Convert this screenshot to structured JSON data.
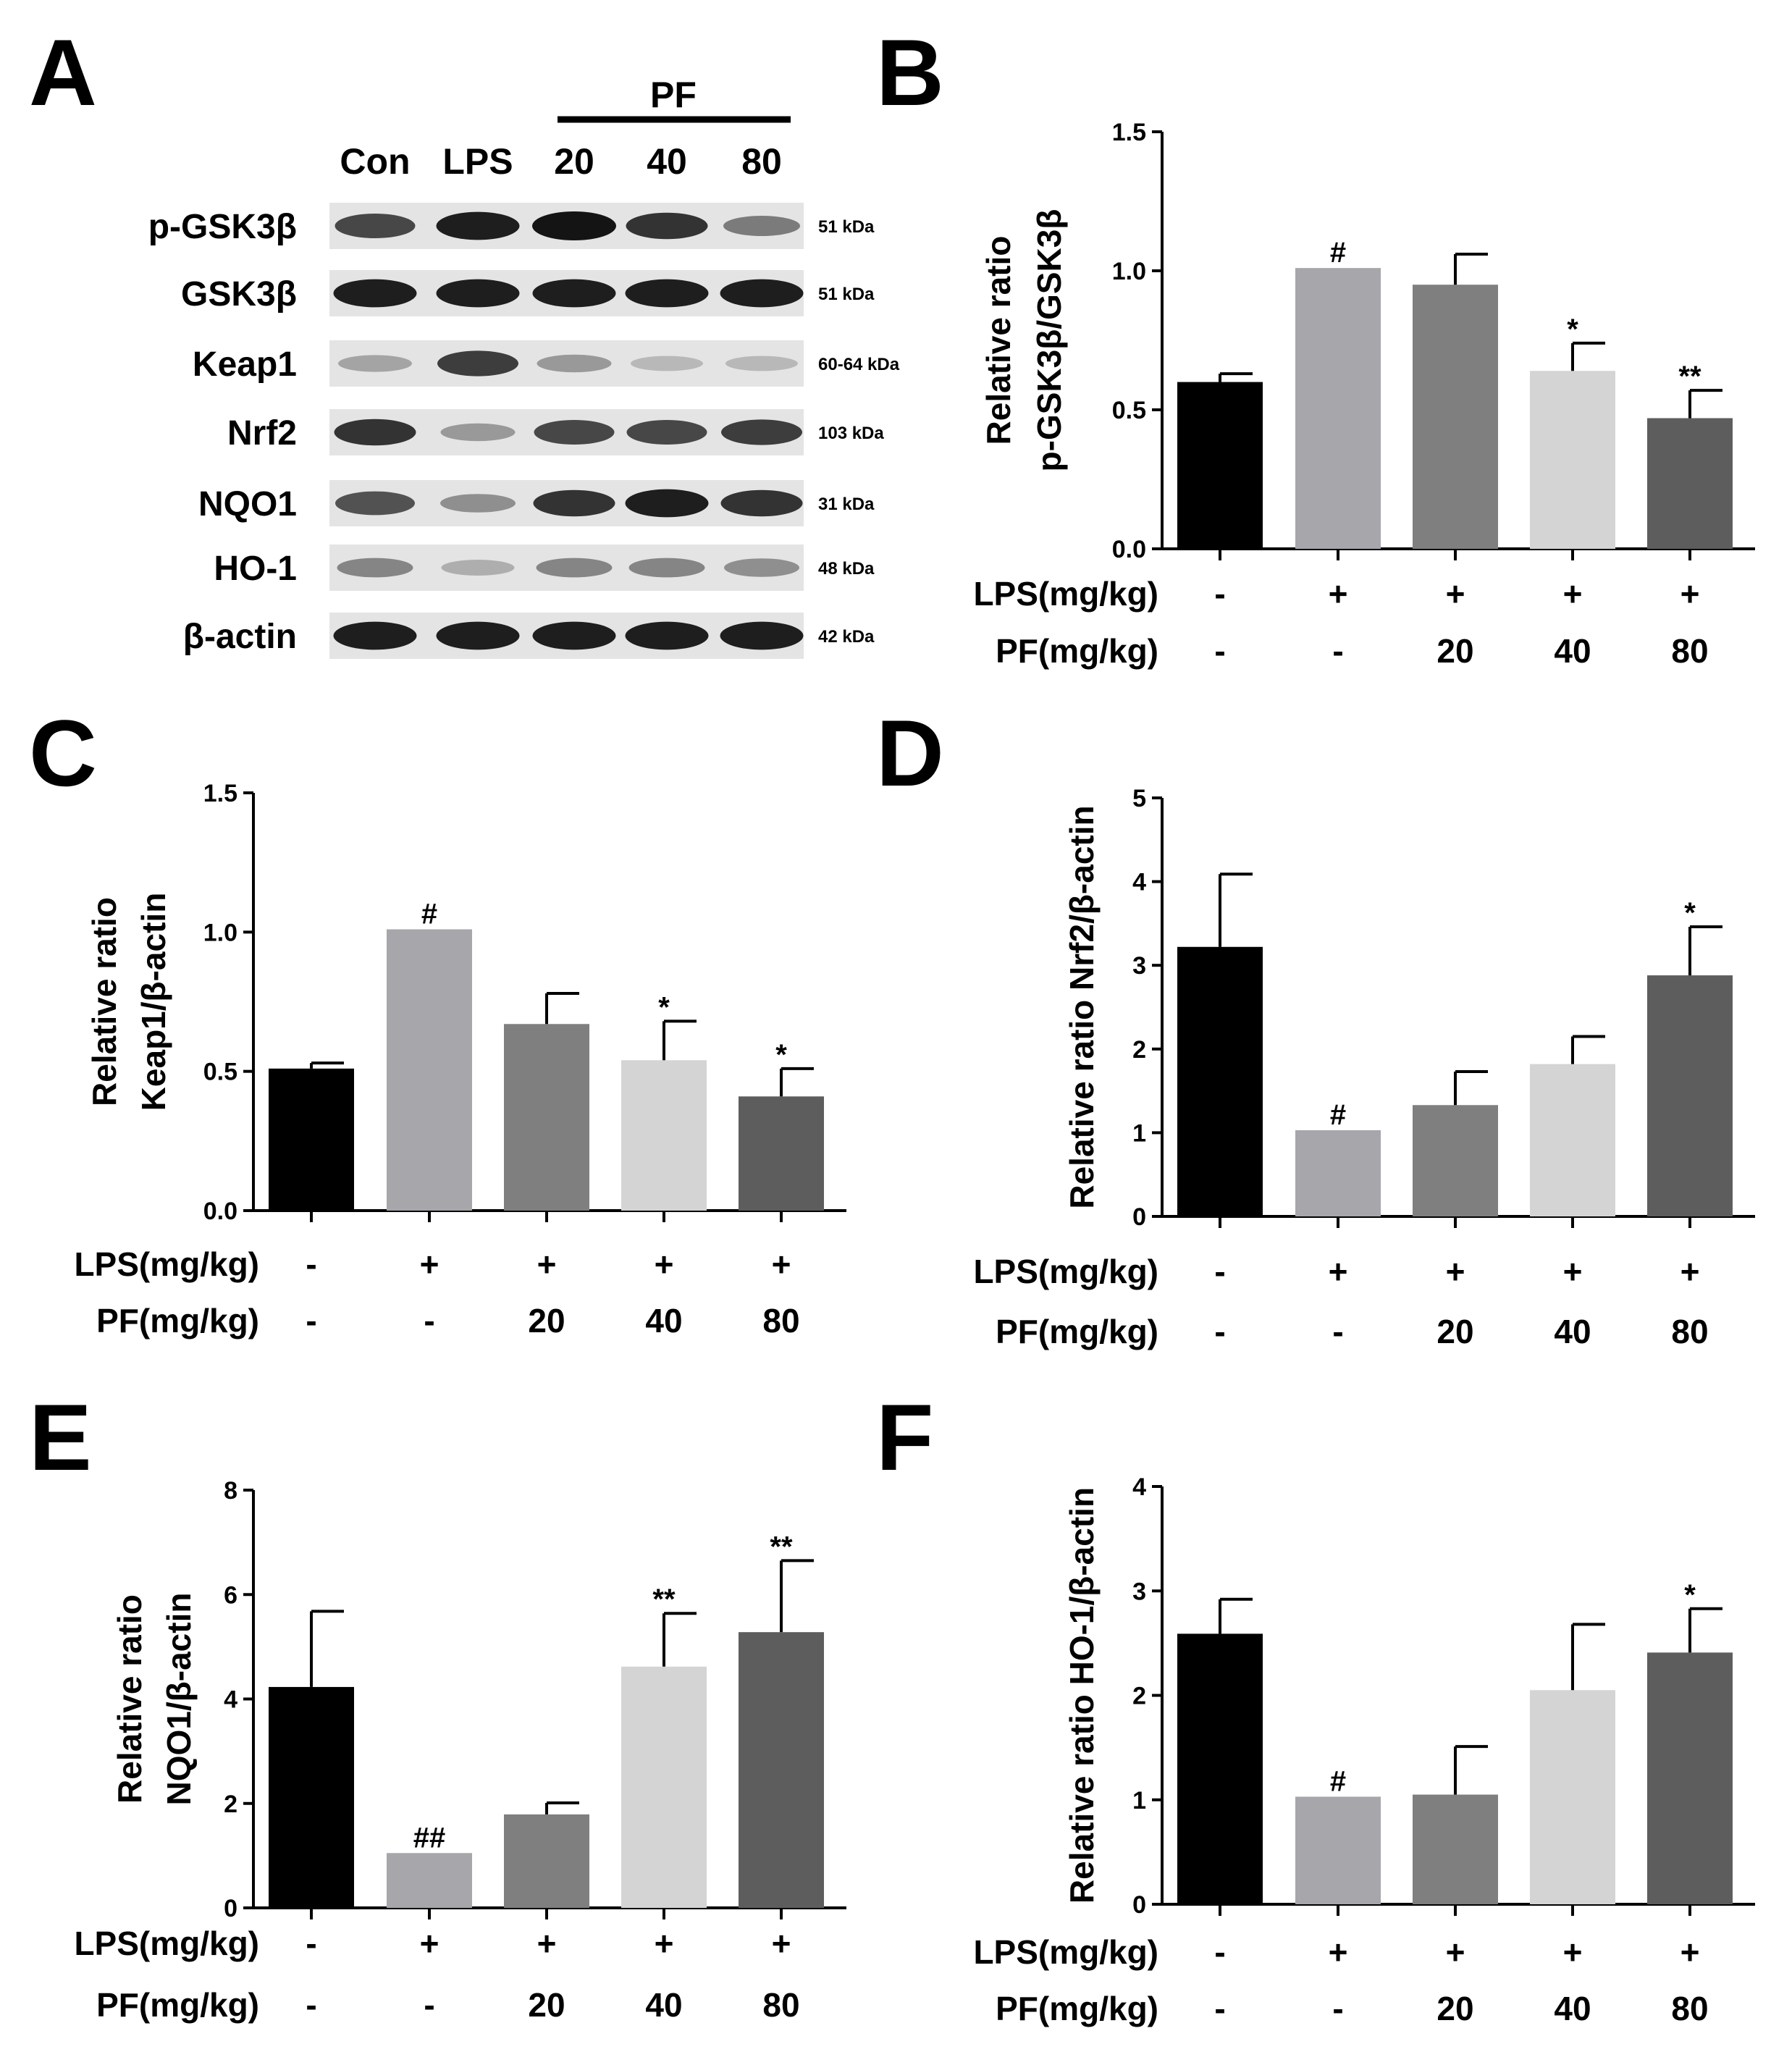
{
  "panel_letters": [
    "A",
    "B",
    "C",
    "D",
    "E",
    "F"
  ],
  "blot": {
    "pf_label": "PF",
    "lanes": [
      "Con",
      "LPS",
      "20",
      "40",
      "80"
    ],
    "rows": [
      {
        "protein": "p-GSK3β",
        "kda": "51 kDa",
        "intensity": [
          0.75,
          0.95,
          1.0,
          0.85,
          0.5
        ]
      },
      {
        "protein": "GSK3β",
        "kda": "51 kDa",
        "intensity": [
          0.95,
          0.95,
          0.95,
          0.95,
          0.95
        ]
      },
      {
        "protein": "Keap1",
        "kda": "60-64 kDa",
        "intensity": [
          0.3,
          0.8,
          0.35,
          0.2,
          0.2
        ]
      },
      {
        "protein": "Nrf2",
        "kda": "103 kDa",
        "intensity": [
          0.85,
          0.35,
          0.75,
          0.75,
          0.8
        ]
      },
      {
        "protein": "NQO1",
        "kda": "31 kDa",
        "intensity": [
          0.7,
          0.4,
          0.85,
          0.95,
          0.85
        ]
      },
      {
        "protein": "HO-1",
        "kda": "48 kDa",
        "intensity": [
          0.45,
          0.25,
          0.45,
          0.45,
          0.4
        ]
      },
      {
        "protein": "β-actin",
        "kda": "42 kDa",
        "intensity": [
          0.95,
          0.95,
          0.95,
          0.95,
          0.95
        ]
      }
    ]
  },
  "colors": [
    "#000000",
    "#a6a6ab",
    "#7f7f7f",
    "#d4d4d4",
    "#5d5d5d"
  ],
  "chart_data": [
    {
      "panel": "B",
      "type": "bar",
      "ylabel": [
        "Relative ratio",
        "p-GSK3β/GSK3β"
      ],
      "ylim": [
        0,
        1.5
      ],
      "yticks": [
        "0.0",
        "0.5",
        "1.0",
        "1.5"
      ],
      "values": [
        0.6,
        1.01,
        0.95,
        0.64,
        0.47
      ],
      "errors": [
        0.03,
        0.0,
        0.11,
        0.1,
        0.1
      ],
      "sig": [
        "",
        "#",
        "",
        "*",
        "**"
      ],
      "conditions": {
        "lps_label": "LPS(mg/kg)",
        "pf_label": "PF(mg/kg)",
        "lps": [
          "-",
          "+",
          "+",
          "+",
          "+"
        ],
        "pf": [
          "-",
          "-",
          "20",
          "40",
          "80"
        ]
      }
    },
    {
      "panel": "C",
      "type": "bar",
      "ylabel": [
        "Relative ratio",
        "Keap1/β-actin"
      ],
      "ylim": [
        0,
        1.5
      ],
      "yticks": [
        "0.0",
        "0.5",
        "1.0",
        "1.5"
      ],
      "values": [
        0.51,
        1.01,
        0.67,
        0.54,
        0.41
      ],
      "errors": [
        0.02,
        0.0,
        0.11,
        0.14,
        0.1
      ],
      "sig": [
        "",
        "#",
        "",
        "*",
        "*"
      ],
      "conditions": {
        "lps_label": "LPS(mg/kg)",
        "pf_label": "PF(mg/kg)",
        "lps": [
          "-",
          "+",
          "+",
          "+",
          "+"
        ],
        "pf": [
          "-",
          "-",
          "20",
          "40",
          "80"
        ]
      }
    },
    {
      "panel": "D",
      "type": "bar",
      "ylabel": [
        "Relative ratio Nrf2/β-actin"
      ],
      "ylim": [
        0,
        5
      ],
      "yticks": [
        "0",
        "1",
        "2",
        "3",
        "4",
        "5"
      ],
      "values": [
        3.22,
        1.03,
        1.33,
        1.82,
        2.88
      ],
      "errors": [
        0.87,
        0.0,
        0.4,
        0.33,
        0.58
      ],
      "sig": [
        "",
        "#",
        "",
        "",
        "*"
      ],
      "conditions": {
        "lps_label": "LPS(mg/kg)",
        "pf_label": "PF(mg/kg)",
        "lps": [
          "-",
          "+",
          "+",
          "+",
          "+"
        ],
        "pf": [
          "-",
          "-",
          "20",
          "40",
          "80"
        ]
      }
    },
    {
      "panel": "E",
      "type": "bar",
      "ylabel": [
        "Relative ratio",
        "NQO1/β-actin"
      ],
      "ylim": [
        0,
        8
      ],
      "yticks": [
        "0",
        "2",
        "4",
        "6",
        "8"
      ],
      "values": [
        4.23,
        1.05,
        1.79,
        4.62,
        5.28
      ],
      "errors": [
        1.45,
        0.0,
        0.22,
        1.02,
        1.37
      ],
      "sig": [
        "",
        "##",
        "",
        "**",
        "**"
      ],
      "conditions": {
        "lps_label": "LPS(mg/kg)",
        "pf_label": "PF(mg/kg)",
        "lps": [
          "-",
          "+",
          "+",
          "+",
          "+"
        ],
        "pf": [
          "-",
          "-",
          "20",
          "40",
          "80"
        ]
      }
    },
    {
      "panel": "F",
      "type": "bar",
      "ylabel": [
        "Relative ratio HO-1/β-actin"
      ],
      "ylim": [
        0,
        4
      ],
      "yticks": [
        "0",
        "1",
        "2",
        "3",
        "4"
      ],
      "values": [
        2.59,
        1.03,
        1.05,
        2.05,
        2.41
      ],
      "errors": [
        0.33,
        0.0,
        0.46,
        0.63,
        0.42
      ],
      "sig": [
        "",
        "#",
        "",
        "",
        "*"
      ],
      "conditions": {
        "lps_label": "LPS(mg/kg)",
        "pf_label": "PF(mg/kg)",
        "lps": [
          "-",
          "+",
          "+",
          "+",
          "+"
        ],
        "pf": [
          "-",
          "-",
          "20",
          "40",
          "80"
        ]
      }
    }
  ]
}
